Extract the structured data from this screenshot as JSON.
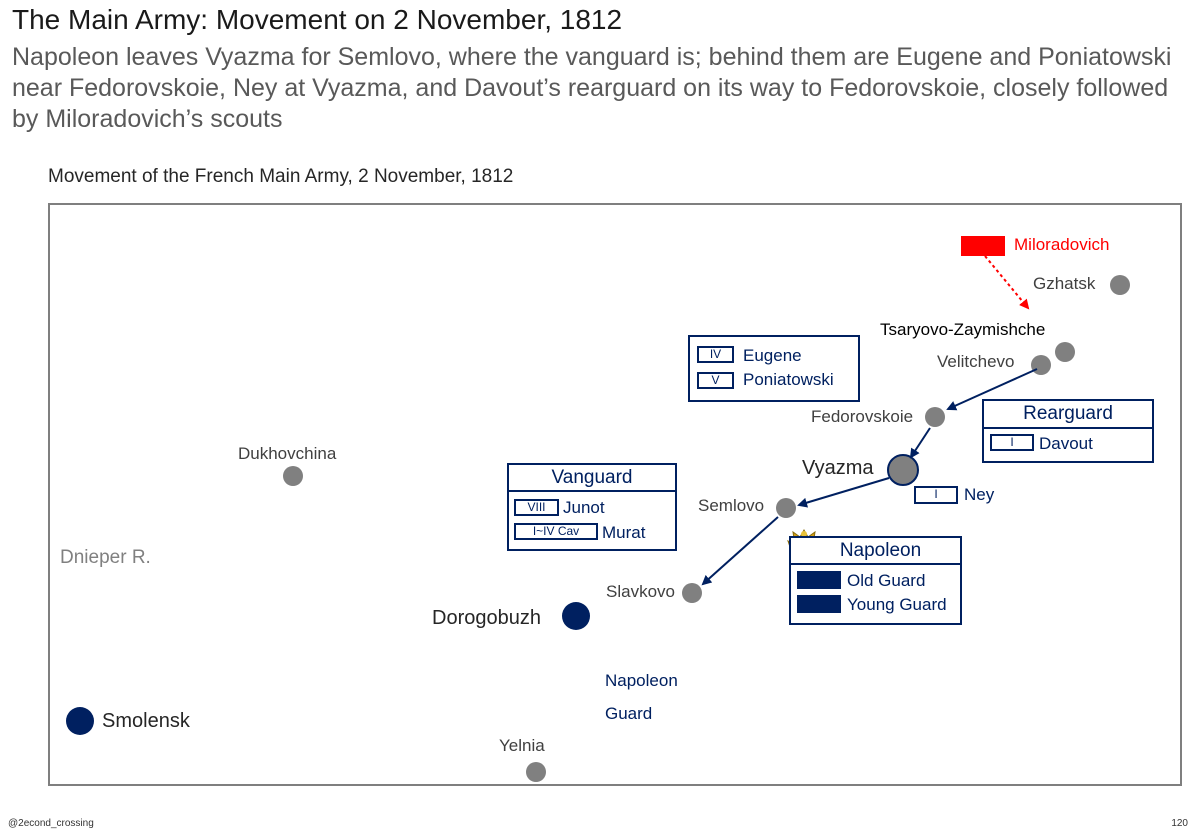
{
  "header": {
    "title": "The Main Army: Movement on 2 November, 1812",
    "subtitle": "Napoleon leaves Vyazma for Semlovo, where the vanguard is; behind them are Eugene and Poniatowski near Fedorovskoie, Ney at Vyazma, and Davout’s rearguard on its way to Fedorovskoie, closely followed by Miloradovich’s scouts"
  },
  "map": {
    "title": "Movement of the French Main Army, 2 November, 1812",
    "river_label": "Dnieper R.",
    "places": {
      "gzhatsk": "Gzhatsk",
      "tsaryovo": "Tsaryovo-Zaymishche",
      "velitchevo": "Velitchevo",
      "fedorovskoie": "Fedorovskoie",
      "vyazma": "Vyazma",
      "semlovo": "Semlovo",
      "slavkovo": "Slavkovo",
      "dukhovchina": "Dukhovchina",
      "dorogobuzh": "Dorogobuzh",
      "smolensk": "Smolensk",
      "yelnia": "Yelnia"
    },
    "napoleon_guard_note": [
      "Napoleon",
      "Guard"
    ],
    "russian_unit": {
      "name": "Miloradovich",
      "color": "#ff0000"
    },
    "groups": {
      "eugene": {
        "units": [
          {
            "tag": "IV",
            "name": "Eugene"
          },
          {
            "tag": "V",
            "name": "Poniatowski"
          }
        ]
      },
      "rearguard": {
        "title": "Rearguard",
        "units": [
          {
            "tag": "I",
            "name": "Davout"
          }
        ]
      },
      "ney": {
        "tag": "I",
        "name": "Ney"
      },
      "vanguard": {
        "title": "Vanguard",
        "units": [
          {
            "tag": "VIII",
            "name": "Junot"
          },
          {
            "tag": "I~IV Cav",
            "name": "Murat"
          }
        ]
      },
      "napoleon": {
        "title": "Napoleon",
        "emblem": "imperial-eagle-icon",
        "units": [
          {
            "name": "Old Guard"
          },
          {
            "name": "Young Guard"
          }
        ]
      }
    },
    "colors": {
      "french": "#002060",
      "russian": "#ff0000",
      "town": "#808080",
      "frame": "#7f7f7f"
    }
  },
  "footer": {
    "handle": "@2econd_crossing",
    "page": "120"
  }
}
